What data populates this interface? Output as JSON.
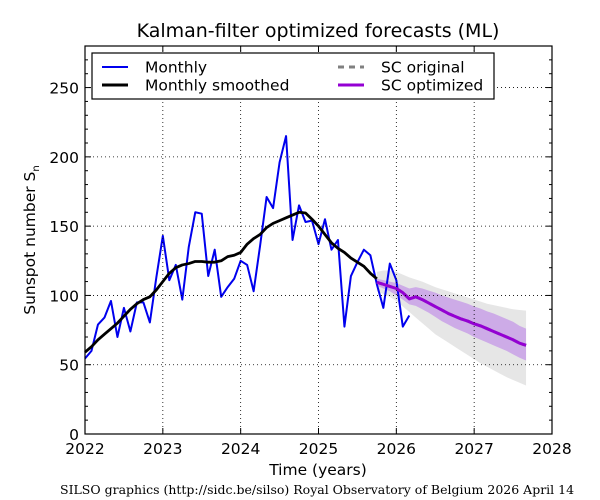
{
  "chart_data": {
    "type": "line",
    "title": "Kalman-filter optimized forecasts (ML)",
    "xlabel": "Time (years)",
    "ylabel": "Sunspot number S",
    "ylabel_subscript": "n",
    "xlim": [
      2022,
      2028
    ],
    "ylim": [
      0,
      280
    ],
    "xticks": [
      2022,
      2023,
      2024,
      2025,
      2026,
      2027,
      2028
    ],
    "xtick_labels": [
      "2022",
      "2023",
      "2024",
      "2025",
      "2026",
      "2027",
      "2028"
    ],
    "yticks": [
      0,
      50,
      100,
      150,
      200,
      250
    ],
    "ytick_labels": [
      "0",
      "50",
      "100",
      "150",
      "200",
      "250"
    ],
    "grid": true,
    "legend_placement": "top-left",
    "legend": [
      {
        "label": "Monthly",
        "color": "#0000ee",
        "style": "solid"
      },
      {
        "label": "Monthly smoothed",
        "color": "#000000",
        "style": "solid"
      },
      {
        "label": "SC original",
        "color": "#808080",
        "style": "dashed"
      },
      {
        "label": "SC optimized",
        "color": "#9400d3",
        "style": "solid"
      }
    ],
    "series": [
      {
        "name": "Monthly",
        "color": "#0000ee",
        "x_start": 2022.0,
        "x_step": 0.08333,
        "values": [
          54.5,
          60,
          79,
          84,
          96,
          70,
          91,
          74,
          95,
          95,
          80.5,
          113,
          143,
          111,
          122,
          97,
          135,
          160,
          159,
          114,
          133,
          99,
          106,
          112,
          125,
          122,
          103,
          136,
          171,
          163,
          196,
          215,
          140,
          165,
          153,
          154,
          137,
          155,
          133,
          140,
          77.5,
          114,
          124,
          133,
          129,
          108,
          91,
          123,
          111,
          77.5,
          85.5
        ]
      },
      {
        "name": "Monthly smoothed",
        "color": "#000000",
        "x_start": 2022.0,
        "x_step": 0.08333,
        "values": [
          59,
          63,
          68,
          72,
          76,
          80,
          85,
          90,
          94,
          97,
          99,
          104,
          110,
          116,
          120,
          122,
          123,
          124.5,
          124.5,
          124,
          124,
          125,
          128,
          129,
          131,
          137,
          141,
          144,
          149,
          152,
          154,
          156,
          158,
          160,
          159.5,
          155,
          150,
          144,
          138,
          134,
          131,
          127,
          124,
          121,
          116,
          112
        ]
      },
      {
        "name": "SC original",
        "color": "#808080",
        "style": "dashed",
        "x_start": 2025.75,
        "x_step": 0.08333,
        "values": [
          109.5,
          108,
          106.5,
          105,
          102,
          97.5,
          99,
          97,
          94.5,
          92,
          89.5,
          87,
          85,
          83,
          81.5,
          79.5,
          78,
          76,
          74,
          72,
          70,
          68,
          65.5,
          64
        ]
      },
      {
        "name": "SC optimized",
        "color": "#9400d3",
        "x_start": 2025.75,
        "x_step": 0.08333,
        "values": [
          109.5,
          108,
          106.5,
          105,
          102,
          97.5,
          99,
          97,
          94.5,
          92,
          89.5,
          87,
          85,
          83,
          81.5,
          79.5,
          78,
          76,
          74,
          72,
          70,
          68,
          65.5,
          64
        ],
        "band": {
          "color": "#c8a0e6",
          "upper": [
            112,
            111,
            110,
            109,
            107,
            105,
            106,
            105,
            103.5,
            102,
            100,
            98.5,
            97,
            95.5,
            94,
            92,
            90.5,
            88.5,
            87,
            85,
            83,
            81,
            78,
            76
          ],
          "lower": [
            107,
            105,
            103,
            100,
            97,
            93.5,
            92.5,
            90,
            87.5,
            84.5,
            81.5,
            79,
            76.5,
            74.5,
            72.5,
            70,
            68,
            66,
            64,
            62,
            60,
            57.5,
            55,
            53
          ]
        }
      }
    ],
    "uncertainty_band": {
      "name": "SC original range",
      "color": "#e6e6e6",
      "x_start": 2025.75,
      "x_step": 0.08333,
      "upper": [
        117,
        118,
        118,
        117,
        115,
        113,
        111.5,
        110,
        108,
        106,
        104.5,
        103,
        101.5,
        100,
        98.5,
        97,
        95.5,
        94,
        93,
        92,
        91,
        90,
        89.5,
        89
      ],
      "lower": [
        103,
        101,
        99,
        96,
        92,
        88,
        84,
        80,
        76,
        72,
        69,
        66,
        63,
        60,
        57,
        54,
        51,
        48.5,
        46,
        43.5,
        41,
        39,
        37,
        35
      ]
    }
  },
  "footer": "SILSO graphics (http://sidc.be/silso)  Royal Observatory of Belgium  2026 April 14"
}
